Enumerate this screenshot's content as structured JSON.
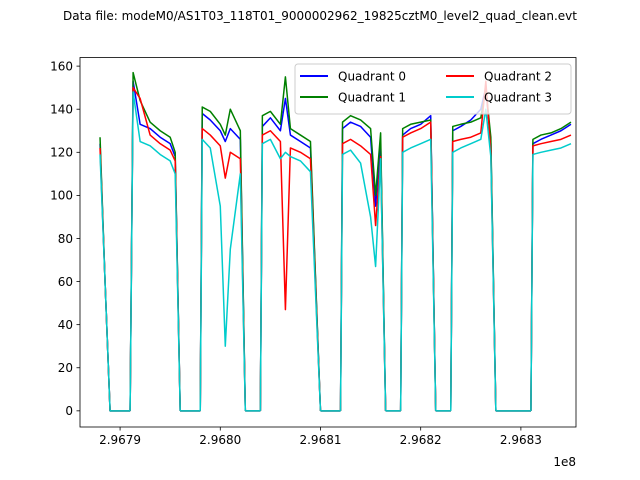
{
  "chart_data": {
    "type": "line",
    "title": "Data file: modeM0/AS1T03_118T01_9000002962_19825cztM0_level2_quad_clean.evt",
    "xlabel": "",
    "ylabel": "",
    "x_offset_label": "1e8",
    "xlim": [
      2.96786,
      2.968355
    ],
    "ylim": [
      -7.5,
      164
    ],
    "x_ticks": [
      2.9679,
      2.968,
      2.9681,
      2.9682,
      2.9683
    ],
    "x_tick_labels": [
      "2.9679",
      "2.9680",
      "2.9681",
      "2.9682",
      "2.9683"
    ],
    "y_ticks": [
      0,
      20,
      40,
      60,
      80,
      100,
      120,
      140,
      160
    ],
    "y_tick_labels": [
      "0",
      "20",
      "40",
      "60",
      "80",
      "100",
      "120",
      "140",
      "160"
    ],
    "grid": false,
    "legend": {
      "position": "top-right",
      "columns": 2
    },
    "series": [
      {
        "name": "Quadrant 0",
        "color": "#0000ff",
        "segments": [
          {
            "x": [
              2.96788,
              2.967885,
              2.96789,
              2.96791
            ],
            "y": [
              124,
              60,
              0,
              0
            ]
          },
          {
            "x": [
              2.96791,
              2.967913,
              2.96792,
              2.96793,
              2.96794,
              2.96795,
              2.967955,
              2.96796
            ],
            "y": [
              0,
              153,
              133,
              131,
              127,
              124,
              118,
              0
            ]
          },
          {
            "x": [
              2.96796,
              2.96798
            ],
            "y": [
              0,
              0
            ]
          },
          {
            "x": [
              2.96798,
              2.967982,
              2.96799,
              2.968,
              2.968005,
              2.96801,
              2.96802,
              2.968025
            ],
            "y": [
              0,
              138,
              135,
              130,
              125,
              131,
              126,
              0
            ]
          },
          {
            "x": [
              2.968025,
              2.96804
            ],
            "y": [
              0,
              0
            ]
          },
          {
            "x": [
              2.96804,
              2.968042,
              2.96805,
              2.96806,
              2.968065,
              2.96807,
              2.96808,
              2.96809,
              2.9681
            ],
            "y": [
              0,
              132,
              136,
              130,
              145,
              128,
              125,
              122,
              0
            ]
          },
          {
            "x": [
              2.9681,
              2.96812
            ],
            "y": [
              0,
              0
            ]
          },
          {
            "x": [
              2.96812,
              2.968122,
              2.96813,
              2.96814,
              2.96815,
              2.968155,
              2.96816,
              2.968165
            ],
            "y": [
              0,
              131,
              134,
              132,
              127,
              95,
              125,
              0
            ]
          },
          {
            "x": [
              2.968165,
              2.96818
            ],
            "y": [
              0,
              0
            ]
          },
          {
            "x": [
              2.96818,
              2.968182,
              2.96819,
              2.9682,
              2.96821,
              2.968215
            ],
            "y": [
              0,
              128,
              131,
              133,
              137,
              0
            ]
          },
          {
            "x": [
              2.968215,
              2.96823
            ],
            "y": [
              0,
              0
            ]
          },
          {
            "x": [
              2.96823,
              2.968232,
              2.96824,
              2.96825,
              2.96826,
              2.968265,
              2.96827,
              2.968275
            ],
            "y": [
              0,
              130,
              132,
              135,
              140,
              150,
              124,
              0
            ]
          },
          {
            "x": [
              2.968275,
              2.96831
            ],
            "y": [
              0,
              0
            ]
          },
          {
            "x": [
              2.96831,
              2.968312,
              2.96832,
              2.96833,
              2.96834,
              2.96835
            ],
            "y": [
              0,
              124,
              126,
              128,
              130,
              133
            ]
          }
        ]
      },
      {
        "name": "Quadrant 1",
        "color": "#008000",
        "segments": [
          {
            "x": [
              2.96788,
              2.967885,
              2.96789,
              2.96791
            ],
            "y": [
              127,
              60,
              0,
              0
            ]
          },
          {
            "x": [
              2.96791,
              2.967913,
              2.96792,
              2.96793,
              2.96794,
              2.96795,
              2.967955,
              2.96796
            ],
            "y": [
              0,
              157,
              144,
              134,
              130,
              127,
              120,
              0
            ]
          },
          {
            "x": [
              2.96796,
              2.96798
            ],
            "y": [
              0,
              0
            ]
          },
          {
            "x": [
              2.96798,
              2.967982,
              2.96799,
              2.968,
              2.968005,
              2.96801,
              2.96802,
              2.968025
            ],
            "y": [
              0,
              141,
              139,
              133,
              128,
              140,
              130,
              0
            ]
          },
          {
            "x": [
              2.968025,
              2.96804
            ],
            "y": [
              0,
              0
            ]
          },
          {
            "x": [
              2.96804,
              2.968042,
              2.96805,
              2.96806,
              2.968065,
              2.96807,
              2.96808,
              2.96809,
              2.9681
            ],
            "y": [
              0,
              137,
              139,
              133,
              155,
              131,
              128,
              125,
              0
            ]
          },
          {
            "x": [
              2.9681,
              2.96812
            ],
            "y": [
              0,
              0
            ]
          },
          {
            "x": [
              2.96812,
              2.968122,
              2.96813,
              2.96814,
              2.96815,
              2.968155,
              2.96816,
              2.968165
            ],
            "y": [
              0,
              134,
              137,
              135,
              131,
              100,
              129,
              0
            ]
          },
          {
            "x": [
              2.968165,
              2.96818
            ],
            "y": [
              0,
              0
            ]
          },
          {
            "x": [
              2.96818,
              2.968182,
              2.96819,
              2.9682,
              2.96821,
              2.968215
            ],
            "y": [
              0,
              131,
              133,
              134,
              135,
              0
            ]
          },
          {
            "x": [
              2.968215,
              2.96823
            ],
            "y": [
              0,
              0
            ]
          },
          {
            "x": [
              2.96823,
              2.968232,
              2.96824,
              2.96825,
              2.96826,
              2.968265,
              2.96827,
              2.968275
            ],
            "y": [
              0,
              132,
              133,
              134,
              136,
              150,
              127,
              0
            ]
          },
          {
            "x": [
              2.968275,
              2.96831
            ],
            "y": [
              0,
              0
            ]
          },
          {
            "x": [
              2.96831,
              2.968312,
              2.96832,
              2.96833,
              2.96834,
              2.96835
            ],
            "y": [
              0,
              126,
              128,
              129,
              131,
              134
            ]
          }
        ]
      },
      {
        "name": "Quadrant 2",
        "color": "#ff0000",
        "segments": [
          {
            "x": [
              2.96788,
              2.967885,
              2.96789,
              2.96791
            ],
            "y": [
              122,
              60,
              0,
              0
            ]
          },
          {
            "x": [
              2.96791,
              2.967913,
              2.96792,
              2.96793,
              2.96794,
              2.96795,
              2.967955,
              2.96796
            ],
            "y": [
              0,
              150,
              145,
              128,
              124,
              121,
              116,
              0
            ]
          },
          {
            "x": [
              2.96796,
              2.96798
            ],
            "y": [
              0,
              0
            ]
          },
          {
            "x": [
              2.96798,
              2.967982,
              2.96799,
              2.968,
              2.968005,
              2.96801,
              2.96802,
              2.968025
            ],
            "y": [
              0,
              131,
              128,
              123,
              108,
              120,
              117,
              0
            ]
          },
          {
            "x": [
              2.968025,
              2.96804
            ],
            "y": [
              0,
              0
            ]
          },
          {
            "x": [
              2.96804,
              2.968042,
              2.96805,
              2.96806,
              2.968065,
              2.96807,
              2.96808,
              2.96809,
              2.9681
            ],
            "y": [
              0,
              128,
              130,
              125,
              47,
              122,
              120,
              117,
              0
            ]
          },
          {
            "x": [
              2.9681,
              2.96812
            ],
            "y": [
              0,
              0
            ]
          },
          {
            "x": [
              2.96812,
              2.968122,
              2.96813,
              2.96814,
              2.96815,
              2.968155,
              2.96816,
              2.968165
            ],
            "y": [
              0,
              124,
              126,
              123,
              119,
              86,
              118,
              0
            ]
          },
          {
            "x": [
              2.968165,
              2.96818
            ],
            "y": [
              0,
              0
            ]
          },
          {
            "x": [
              2.96818,
              2.968182,
              2.96819,
              2.9682,
              2.96821,
              2.968215
            ],
            "y": [
              0,
              127,
              129,
              131,
              134,
              0
            ]
          },
          {
            "x": [
              2.968215,
              2.96823
            ],
            "y": [
              0,
              0
            ]
          },
          {
            "x": [
              2.96823,
              2.968232,
              2.96824,
              2.96825,
              2.96826,
              2.968265,
              2.96827,
              2.968275
            ],
            "y": [
              0,
              125,
              126,
              127,
              129,
              153,
              120,
              0
            ]
          },
          {
            "x": [
              2.968275,
              2.96831
            ],
            "y": [
              0,
              0
            ]
          },
          {
            "x": [
              2.96831,
              2.968312,
              2.96832,
              2.96833,
              2.96834,
              2.96835
            ],
            "y": [
              0,
              123,
              124,
              125,
              126,
              128
            ]
          }
        ]
      },
      {
        "name": "Quadrant 3",
        "color": "#00cccc",
        "segments": [
          {
            "x": [
              2.96788,
              2.967885,
              2.96789,
              2.96791
            ],
            "y": [
              119,
              60,
              0,
              0
            ]
          },
          {
            "x": [
              2.96791,
              2.967913,
              2.96792,
              2.96793,
              2.96794,
              2.96795,
              2.967955,
              2.96796
            ],
            "y": [
              0,
              148,
              125,
              123,
              119,
              116,
              110,
              0
            ]
          },
          {
            "x": [
              2.96796,
              2.96798
            ],
            "y": [
              0,
              0
            ]
          },
          {
            "x": [
              2.96798,
              2.967982,
              2.96799,
              2.968,
              2.968005,
              2.96801,
              2.96802,
              2.968025
            ],
            "y": [
              0,
              126,
              122,
              95,
              30,
              75,
              110,
              0
            ]
          },
          {
            "x": [
              2.968025,
              2.96804
            ],
            "y": [
              0,
              0
            ]
          },
          {
            "x": [
              2.96804,
              2.968042,
              2.96805,
              2.96806,
              2.968065,
              2.96807,
              2.96808,
              2.96809,
              2.9681
            ],
            "y": [
              0,
              124,
              126,
              117,
              120,
              118,
              116,
              111,
              0
            ]
          },
          {
            "x": [
              2.9681,
              2.96812
            ],
            "y": [
              0,
              0
            ]
          },
          {
            "x": [
              2.96812,
              2.968122,
              2.96813,
              2.96814,
              2.96815,
              2.968155,
              2.96816,
              2.968165
            ],
            "y": [
              0,
              119,
              121,
              115,
              90,
              67,
              117,
              0
            ]
          },
          {
            "x": [
              2.968165,
              2.96818
            ],
            "y": [
              0,
              0
            ]
          },
          {
            "x": [
              2.96818,
              2.968182,
              2.96819,
              2.9682,
              2.96821,
              2.968215
            ],
            "y": [
              0,
              120,
              122,
              124,
              126,
              0
            ]
          },
          {
            "x": [
              2.968215,
              2.96823
            ],
            "y": [
              0,
              0
            ]
          },
          {
            "x": [
              2.96823,
              2.968232,
              2.96824,
              2.96825,
              2.96826,
              2.968265,
              2.96827,
              2.968275
            ],
            "y": [
              0,
              120,
              122,
              124,
              126,
              140,
              118,
              0
            ]
          },
          {
            "x": [
              2.968275,
              2.96831
            ],
            "y": [
              0,
              0
            ]
          },
          {
            "x": [
              2.96831,
              2.968312,
              2.96832,
              2.96833,
              2.96834,
              2.96835
            ],
            "y": [
              0,
              119,
              120,
              121,
              122,
              124
            ]
          }
        ]
      }
    ]
  }
}
